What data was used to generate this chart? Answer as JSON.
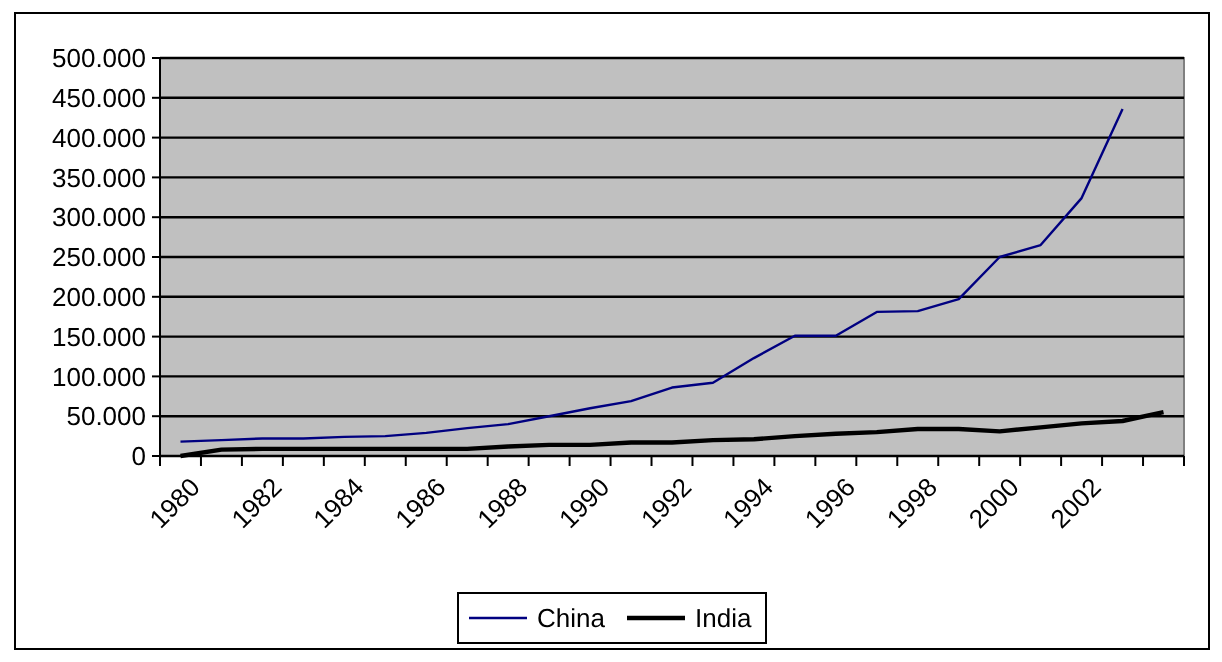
{
  "chart_data": {
    "type": "line",
    "categories": [
      "1980",
      null,
      "1982",
      null,
      "1984",
      null,
      "1986",
      null,
      "1988",
      null,
      "1990",
      null,
      "1992",
      null,
      "1994",
      null,
      "1996",
      null,
      "1998",
      null,
      "2000",
      null,
      "2002",
      null,
      null
    ],
    "series": [
      {
        "name": "China",
        "color": "#000080",
        "values": [
          18000,
          20000,
          22000,
          22000,
          24000,
          25000,
          29000,
          35000,
          40000,
          50000,
          60000,
          69000,
          86000,
          92000,
          123000,
          151000,
          151000,
          181000,
          182000,
          197000,
          250000,
          265000,
          324000,
          436000,
          null
        ]
      },
      {
        "name": "India",
        "color": "#000000",
        "values": [
          0,
          8000,
          9000,
          9000,
          9000,
          9000,
          9000,
          9000,
          12000,
          14000,
          14000,
          17000,
          17000,
          20000,
          21000,
          25000,
          28000,
          30000,
          34000,
          34000,
          31000,
          36000,
          41000,
          44000,
          55000
        ]
      }
    ],
    "ylim": [
      0,
      500000
    ],
    "yticks": [
      0,
      {
        "value": 50000,
        "label": "50.000"
      },
      {
        "value": 100000,
        "label": "100.000"
      },
      {
        "value": 150000,
        "label": "150.000"
      },
      {
        "value": 200000,
        "label": "200.000"
      },
      {
        "value": 250000,
        "label": "250.000"
      },
      {
        "value": 300000,
        "label": "300.000"
      },
      {
        "value": 350000,
        "label": "350.000"
      },
      {
        "value": 400000,
        "label": "400.000"
      },
      {
        "value": 450000,
        "label": "450.000"
      },
      {
        "value": 500000,
        "label": "500.000"
      }
    ],
    "grid": "y",
    "legend": "bottom",
    "marker": "none",
    "line_style": "solid"
  }
}
